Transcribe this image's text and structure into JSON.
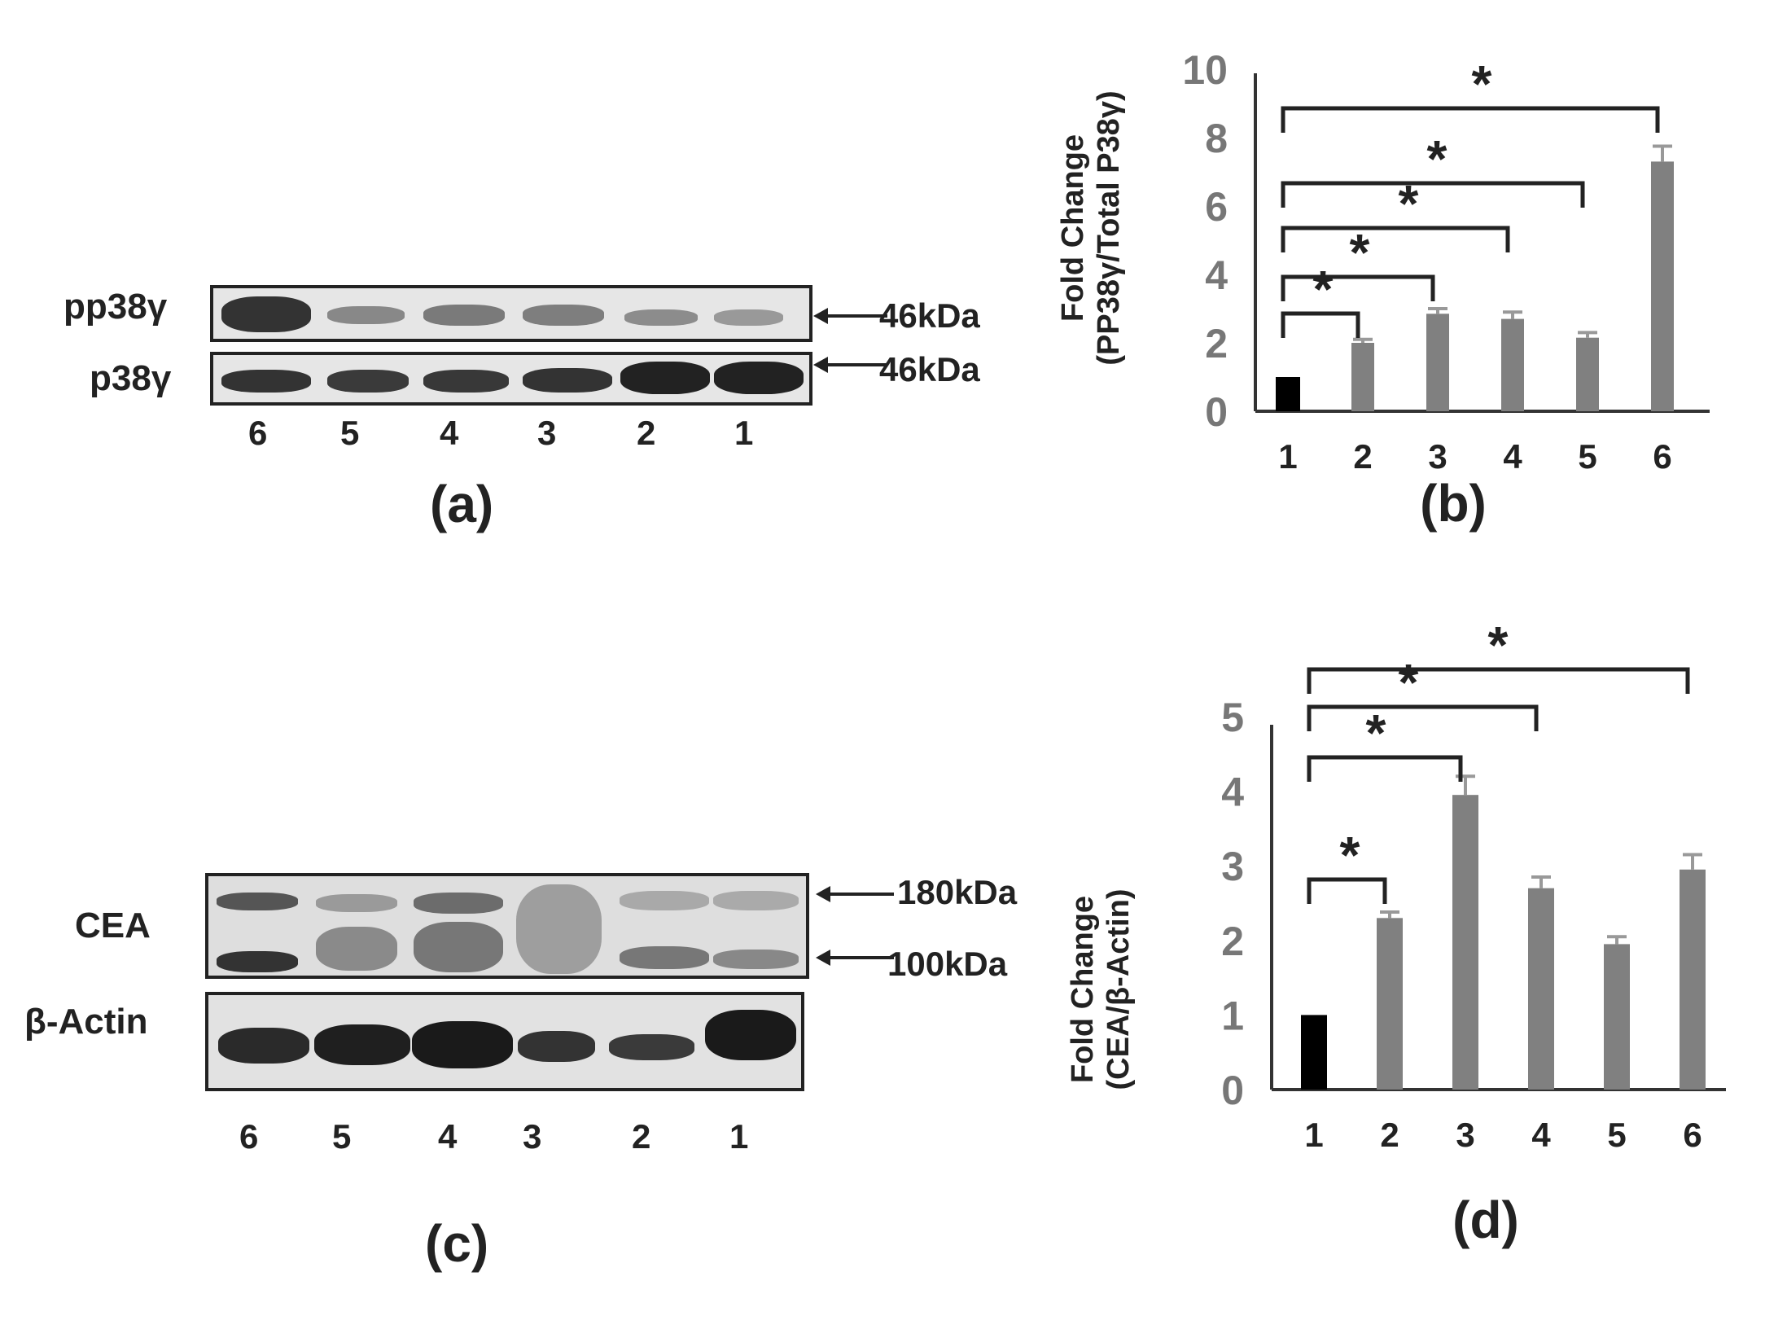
{
  "panel_a": {
    "label": "(a)",
    "rows": [
      "pp38γ",
      "p38γ"
    ],
    "markers": [
      "46kDa",
      "46kDa"
    ],
    "lanes": [
      "6",
      "5",
      "4",
      "3",
      "2",
      "1"
    ]
  },
  "panel_c": {
    "label": "(c)",
    "rows": [
      "CEA",
      "β-Actin"
    ],
    "markers": [
      "180kDa",
      "100kDa"
    ],
    "lanes": [
      "6",
      "5",
      "4",
      "3",
      "2",
      "1"
    ]
  },
  "chart_data": [
    {
      "panel_label": "(b)",
      "type": "bar",
      "categories": [
        "1",
        "2",
        "3",
        "4",
        "5",
        "6"
      ],
      "values": [
        1.0,
        2.0,
        2.85,
        2.7,
        2.15,
        7.3
      ],
      "errors": [
        0.0,
        0.1,
        0.15,
        0.2,
        0.15,
        0.45
      ],
      "ylabel_lines": [
        "Fold Change",
        "(PP38γ/Total P38γ)"
      ],
      "ylim": [
        0,
        10
      ],
      "yticks": [
        "0",
        "2",
        "4",
        "6",
        "8",
        "10"
      ],
      "significance": [
        {
          "from": "1",
          "to": "2",
          "label": "*"
        },
        {
          "from": "1",
          "to": "3",
          "label": "*"
        },
        {
          "from": "1",
          "to": "4",
          "label": "*"
        },
        {
          "from": "1",
          "to": "5",
          "label": "*"
        },
        {
          "from": "1",
          "to": "6",
          "label": "*"
        }
      ],
      "colors": {
        "control": "#000000",
        "bar": "#808080",
        "error": "#999999"
      }
    },
    {
      "panel_label": "(d)",
      "type": "bar",
      "categories": [
        "1",
        "2",
        "3",
        "4",
        "5",
        "6"
      ],
      "values": [
        1.0,
        2.3,
        3.95,
        2.7,
        1.95,
        2.95
      ],
      "errors": [
        0.0,
        0.08,
        0.25,
        0.15,
        0.1,
        0.2
      ],
      "ylabel_lines": [
        "Fold Change",
        "(CEA/β-Actin)"
      ],
      "ylim": [
        0,
        5
      ],
      "yticks": [
        "0",
        "1",
        "2",
        "3",
        "4",
        "5"
      ],
      "significance": [
        {
          "from": "1",
          "to": "2",
          "label": "*"
        },
        {
          "from": "1",
          "to": "3",
          "label": "*"
        },
        {
          "from": "1",
          "to": "4",
          "label": "*"
        },
        {
          "from": "1",
          "to": "6",
          "label": "*"
        }
      ],
      "colors": {
        "control": "#000000",
        "bar": "#808080",
        "error": "#999999"
      }
    }
  ]
}
